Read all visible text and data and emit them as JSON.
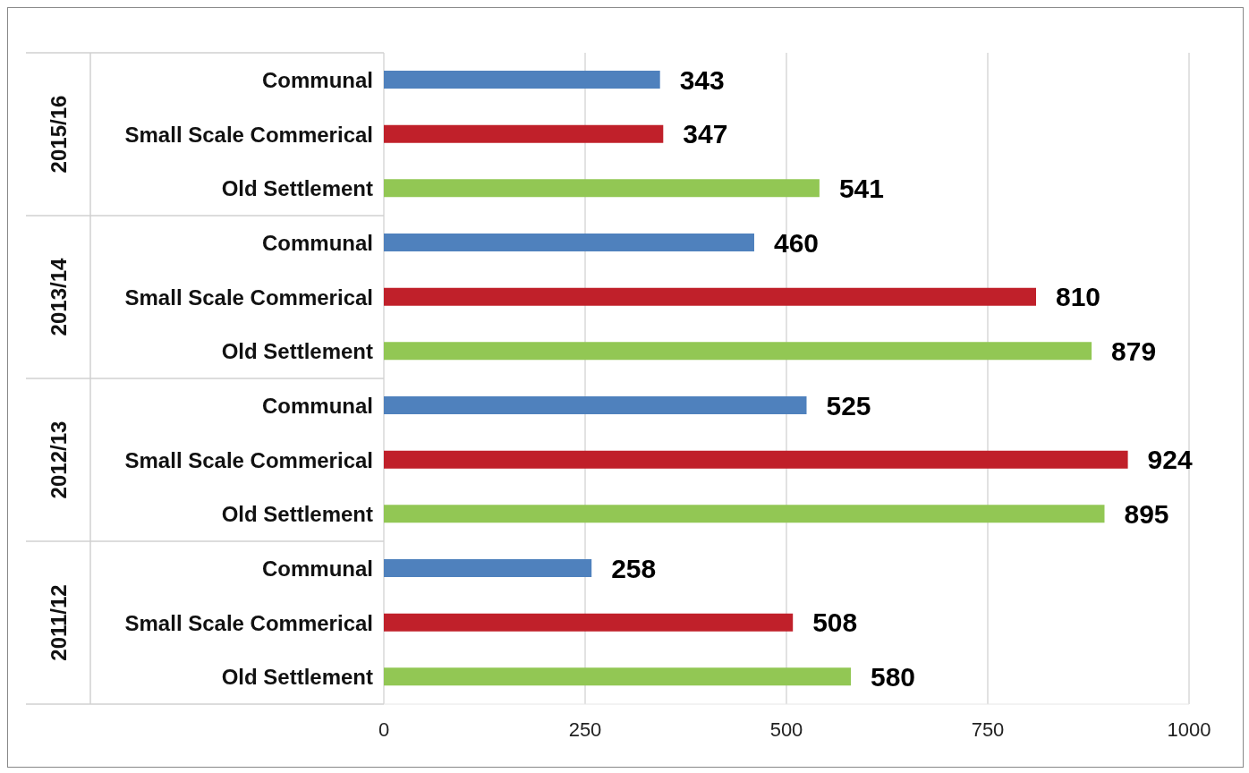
{
  "chart_data": {
    "type": "bar",
    "orientation": "horizontal",
    "categories": [
      "Communal",
      "Small Scale Commerical",
      "Old Settlement",
      "Communal",
      "Small Scale Commerical",
      "Old Settlement",
      "Communal",
      "Small Scale Commerical",
      "Old Settlement",
      "Communal",
      "Small Scale Commerical",
      "Old Settlement"
    ],
    "values": [
      343,
      347,
      541,
      460,
      810,
      879,
      525,
      924,
      895,
      258,
      508,
      580
    ],
    "colors": [
      "#4f81bd",
      "#c0202a",
      "#92c754",
      "#4f81bd",
      "#c0202a",
      "#92c754",
      "#4f81bd",
      "#c0202a",
      "#92c754",
      "#4f81bd",
      "#c0202a",
      "#92c754"
    ],
    "annotations": [
      "2015/16",
      "2013/14",
      "2012/13",
      "2011/12"
    ],
    "xlim": [
      0,
      1000
    ],
    "xticks": [
      0,
      250,
      500,
      750,
      1000
    ],
    "grid": "x",
    "data_labels": true,
    "legend": false
  }
}
